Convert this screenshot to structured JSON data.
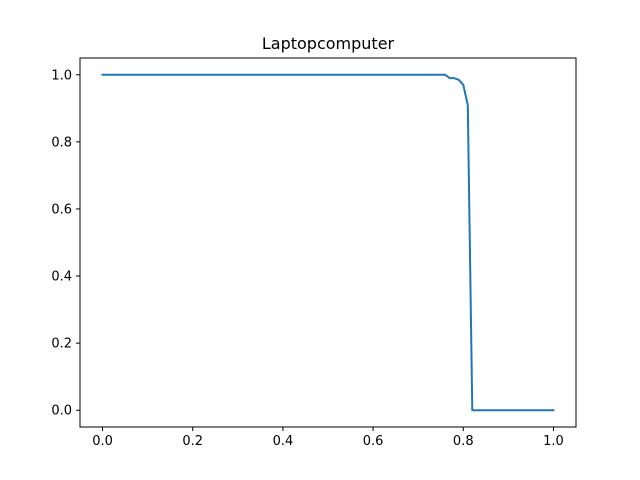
{
  "chart_data": {
    "type": "line",
    "title": "Laptopcomputer",
    "xlabel": "",
    "ylabel": "",
    "xlim": [
      -0.05,
      1.05
    ],
    "ylim": [
      -0.05,
      1.05
    ],
    "x_ticks": [
      0.0,
      0.2,
      0.4,
      0.6,
      0.8,
      1.0
    ],
    "x_tick_labels": [
      "0.0",
      "0.2",
      "0.4",
      "0.6",
      "0.8",
      "1.0"
    ],
    "y_ticks": [
      0.0,
      0.2,
      0.4,
      0.6,
      0.8,
      1.0
    ],
    "y_tick_labels": [
      "0.0",
      "0.2",
      "0.4",
      "0.6",
      "0.8",
      "1.0"
    ],
    "grid": false,
    "series": [
      {
        "color": "#1f77b4",
        "x": [
          0.0,
          0.76,
          0.77,
          0.78,
          0.79,
          0.8,
          0.81,
          0.82,
          0.83,
          1.0
        ],
        "y": [
          1.0,
          1.0,
          0.99,
          0.99,
          0.985,
          0.97,
          0.91,
          0.0,
          0.0,
          0.0
        ]
      }
    ]
  }
}
